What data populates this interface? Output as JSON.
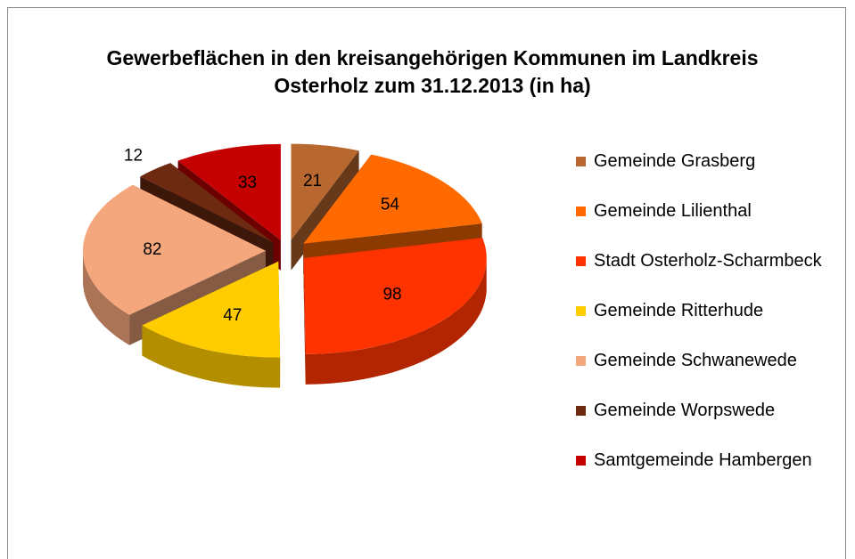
{
  "chart_data": {
    "type": "pie3d",
    "title": "Gewerbeflächen in den kreisangehörigen Kommunen im Landkreis Osterholz zum 31.12.2013 (in ha)",
    "categories": [
      "Gemeinde Grasberg",
      "Gemeinde Lilienthal",
      "Stadt Osterholz-Scharmbeck",
      "Gemeinde Ritterhude",
      "Gemeinde Schwanewede",
      "Gemeinde Worpswede",
      "Samtgemeinde Hambergen"
    ],
    "values": [
      21,
      54,
      98,
      47,
      82,
      12,
      33
    ],
    "colors": [
      "#b8672f",
      "#ff6a00",
      "#ff3300",
      "#ffcc00",
      "#f4a67c",
      "#6e2a10",
      "#c40000"
    ],
    "legend": "right"
  }
}
